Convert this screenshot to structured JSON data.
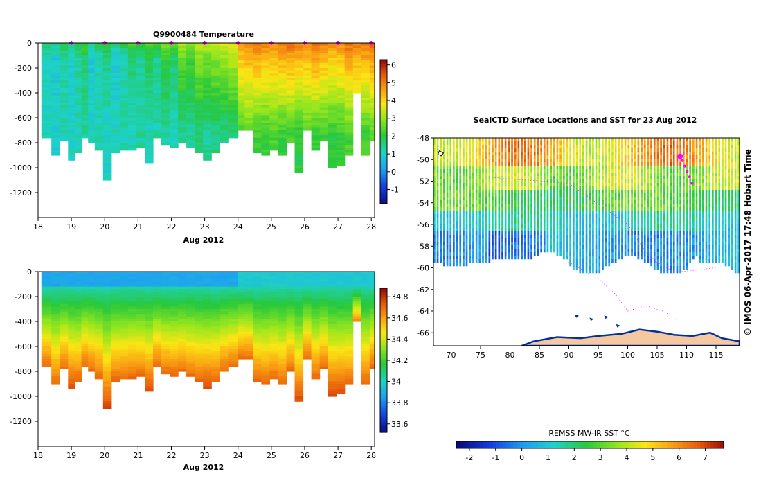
{
  "chart_data": [
    {
      "type": "heatmap",
      "title": "Q9900484  Temperature",
      "xlabel": "Aug 2012",
      "xlim": [
        18,
        28.1
      ],
      "ylim": [
        -1400,
        0
      ],
      "x_ticks": [
        "18",
        "19",
        "20",
        "21",
        "22",
        "23",
        "24",
        "25",
        "26",
        "27",
        "28"
      ],
      "y_ticks": [
        "0",
        "-200",
        "-400",
        "-600",
        "-800",
        "-1000",
        "-1200"
      ],
      "colorbar": {
        "min": -1.8,
        "max": 6.3,
        "ticks": [
          "6",
          "5",
          "4",
          "3",
          "2",
          "1",
          "0",
          "-1"
        ]
      },
      "surface_markers_day": [
        19,
        20,
        21,
        22,
        23,
        24,
        25,
        26,
        27,
        28
      ],
      "profiles": {
        "x_start": [
          18.1,
          18.4,
          18.65,
          18.9,
          19.1,
          19.3,
          19.5,
          19.7,
          19.95,
          20.2,
          20.45,
          20.7,
          20.95,
          21.2,
          21.45,
          21.7,
          21.95,
          22.2,
          22.45,
          22.7,
          22.95,
          23.2,
          23.45,
          23.7,
          24.0,
          24.2,
          24.45,
          24.7,
          24.95,
          25.2,
          25.45,
          25.7,
          25.95,
          26.2,
          26.45,
          26.7,
          26.95,
          27.2,
          27.45,
          27.7,
          27.95
        ],
        "x_end": [
          18.4,
          18.65,
          18.9,
          19.1,
          19.3,
          19.5,
          19.7,
          19.95,
          20.2,
          20.45,
          20.7,
          20.95,
          21.2,
          21.45,
          21.7,
          21.95,
          22.2,
          22.45,
          22.7,
          22.95,
          23.2,
          23.45,
          23.7,
          24.0,
          24.2,
          24.45,
          24.7,
          24.95,
          25.2,
          25.45,
          25.7,
          25.95,
          26.2,
          26.45,
          26.7,
          26.95,
          27.2,
          27.45,
          27.7,
          27.95,
          28.1
        ],
        "max_depth": [
          760,
          900,
          780,
          940,
          870,
          760,
          800,
          850,
          1090,
          870,
          860,
          850,
          840,
          960,
          760,
          810,
          830,
          800,
          840,
          870,
          930,
          870,
          800,
          760,
          700,
          700,
          870,
          890,
          860,
          900,
          800,
          1040,
          700,
          850,
          770,
          990,
          980,
          900,
          400,
          890,
          770
        ],
        "surface_temp": [
          1.8,
          1.5,
          1.9,
          1.6,
          2.0,
          2.3,
          1.5,
          1.8,
          2.2,
          1.5,
          1.9,
          2.3,
          2.0,
          2.5,
          2.1,
          2.8,
          2.4,
          3.2,
          2.9,
          3.4,
          3.3,
          3.5,
          3.6,
          3.8,
          4.8,
          5.0,
          5.1,
          5.0,
          4.9,
          5.1,
          5.2,
          5.0,
          4.9,
          5.3,
          5.0,
          4.8,
          4.9,
          5.2,
          5.0,
          5.1,
          5.3
        ],
        "deep_temp": [
          1.2,
          1.1,
          1.3,
          1.1,
          1.2,
          1.4,
          1.2,
          1.3,
          1.1,
          1.2,
          1.3,
          1.2,
          1.4,
          1.2,
          1.3,
          1.4,
          1.2,
          1.5,
          1.4,
          1.6,
          1.5,
          1.6,
          1.6,
          1.7,
          2.4,
          2.5,
          2.3,
          2.2,
          2.4,
          2.2,
          2.3,
          2.1,
          2.5,
          2.2,
          2.3,
          2.1,
          2.2,
          2.4,
          2.8,
          2.3,
          2.5
        ]
      }
    },
    {
      "type": "heatmap",
      "title": "",
      "xlabel": "Aug 2012",
      "xlim": [
        18,
        28.1
      ],
      "ylim": [
        -1400,
        0
      ],
      "x_ticks": [
        "18",
        "19",
        "20",
        "21",
        "22",
        "23",
        "24",
        "25",
        "26",
        "27",
        "28"
      ],
      "y_ticks": [
        "0",
        "-200",
        "-400",
        "-600",
        "-800",
        "-1000",
        "-1200"
      ],
      "colorbar": {
        "min": 33.52,
        "max": 34.88,
        "ticks": [
          "34.8",
          "34.6",
          "34.4",
          "34.2",
          "34",
          "33.8",
          "33.6"
        ]
      }
    },
    {
      "type": "heatmap",
      "title": "SealCTD Surface Locations and SST for 23 Aug 2012",
      "xlim": [
        67,
        119
      ],
      "ylim": [
        -67.2,
        -48
      ],
      "x_ticks": [
        "70",
        "75",
        "80",
        "85",
        "90",
        "95",
        "100",
        "105",
        "110",
        "115"
      ],
      "y_ticks": [
        "-48",
        "-50",
        "-52",
        "-54",
        "-56",
        "-58",
        "-60",
        "-62",
        "-64",
        "-66"
      ],
      "colorbar": {
        "label": "REMSS MW-IR SST °C",
        "min": -2.5,
        "max": 7.7,
        "ticks": [
          "-2",
          "-1",
          "0",
          "1",
          "2",
          "3",
          "4",
          "5",
          "6",
          "7"
        ]
      },
      "side_label": "© IMOS 06-Apr-2017 17:48 Hobart Time",
      "track_positions": [
        {
          "lon": 108.9,
          "lat": -49.7
        },
        {
          "lon": 109.3,
          "lat": -50.1
        },
        {
          "lon": 109.7,
          "lat": -50.6
        },
        {
          "lon": 110.1,
          "lat": -51.1
        },
        {
          "lon": 110.5,
          "lat": -51.6
        },
        {
          "lon": 110.9,
          "lat": -52.2
        }
      ]
    }
  ],
  "colors": {
    "marker": "#ff00ff",
    "land": "#f5c8a0",
    "coast": "#0030a0"
  }
}
